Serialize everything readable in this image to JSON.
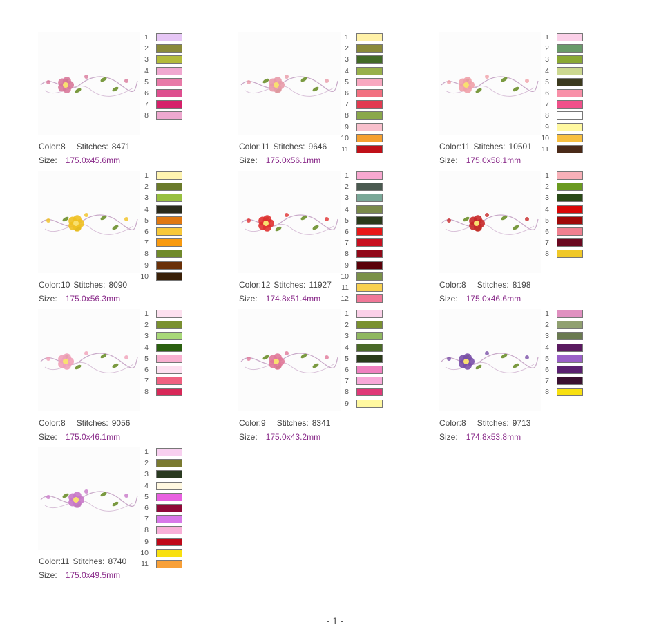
{
  "designs": [
    {
      "color_label": "Color:",
      "color_count": "8",
      "stitches_label": "Stitches:",
      "stitches": "8471",
      "size_label": "Size:",
      "size": "175.0x45.6mm",
      "flower": "#d8789a",
      "palette": [
        "#e6c6f5",
        "#8a8a3a",
        "#b3bb3a",
        "#f0a8d0",
        "#e87aa8",
        "#de4f8f",
        "#d6206a",
        "#eea8cf"
      ]
    },
    {
      "color_label": "Color:",
      "color_count": "11",
      "stitches_label": "Stitches:",
      "stitches": "9646",
      "size_label": "Size:",
      "size": "175.0x56.1mm",
      "flower": "#e89aa8",
      "palette": [
        "#fff1a8",
        "#8a8a3a",
        "#426a26",
        "#98b04a",
        "#f8a8c0",
        "#f27080",
        "#e23a50",
        "#8aa84a",
        "#f8c0cc",
        "#f6a030",
        "#c01018"
      ]
    },
    {
      "color_label": "Color:",
      "color_count": "11",
      "stitches_label": "Stitches:",
      "stitches": "10501",
      "size_label": "Size:",
      "size": "175.0x58.1mm",
      "flower": "#f0a0a8",
      "palette": [
        "#fbd0e8",
        "#6a9a6a",
        "#8aa834",
        "#ccd890",
        "#3c3a1e",
        "#f890a8",
        "#f0508a",
        "#ffffff",
        "#fff8a0",
        "#f8c040",
        "#4a2a18"
      ]
    },
    {
      "color_label": "Color:",
      "color_count": "10",
      "stitches_label": "Stitches:",
      "stitches": "8090",
      "size_label": "Size:",
      "size": "175.0x56.3mm",
      "flower": "#f0c020",
      "palette": [
        "#fff4b0",
        "#6a7a2a",
        "#98c040",
        "#2a2a1a",
        "#e07810",
        "#f8c838",
        "#f89a10",
        "#708a2a",
        "#6a3008",
        "#3a2008"
      ]
    },
    {
      "color_label": "Color:",
      "color_count": "12",
      "stitches_label": "Stitches:",
      "stitches": "11927",
      "size_label": "Size:",
      "size": "174.8x51.4mm",
      "flower": "#e03030",
      "palette": [
        "#f8a8d0",
        "#4a5a50",
        "#7aa898",
        "#7a8a4a",
        "#2a3a1a",
        "#e81818",
        "#c81020",
        "#900818",
        "#5a0008",
        "#7a9048",
        "#f8d050",
        "#f07898"
      ]
    },
    {
      "color_label": "Color:",
      "color_count": "8",
      "stitches_label": "Stitches:",
      "stitches": "8198",
      "size_label": "Size:",
      "size": "175.0x46.6mm",
      "flower": "#c82828",
      "palette": [
        "#f8b0b8",
        "#6a9a20",
        "#2a4a18",
        "#d80808",
        "#a00808",
        "#f08090",
        "#6a0820",
        "#f0c828"
      ]
    },
    {
      "color_label": "Color:",
      "color_count": "8",
      "stitches_label": "Stitches:",
      "stitches": "9056",
      "size_label": "Size:",
      "size": "175.0x46.1mm",
      "flower": "#f0a0b8",
      "palette": [
        "#fde0ef",
        "#7a9030",
        "#a8d878",
        "#2a6010",
        "#f8b0d0",
        "#fde0f0",
        "#f06080",
        "#d82858"
      ]
    },
    {
      "color_label": "Color:",
      "color_count": "9",
      "stitches_label": "Stitches:",
      "stitches": "8341",
      "size_label": "Size:",
      "size": "175.0x43.2mm",
      "flower": "#e07898",
      "palette": [
        "#fbd0e8",
        "#7a9030",
        "#90b860",
        "#4a6a28",
        "#2a3a1a",
        "#f080c0",
        "#f8a8d8",
        "#e03878",
        "#fff8a0"
      ]
    },
    {
      "color_label": "Color:",
      "color_count": "8",
      "stitches_label": "Stitches:",
      "stitches": "9713",
      "size_label": "Size:",
      "size": "174.8x53.8mm",
      "flower": "#7a50a8",
      "palette": [
        "#e090c0",
        "#90a070",
        "#6a7a50",
        "#5a1a60",
        "#9a60c8",
        "#5a2070",
        "#3a1030",
        "#f8e010"
      ]
    },
    {
      "color_label": "Color:",
      "color_count": "11",
      "stitches_label": "Stitches:",
      "stitches": "8740",
      "size_label": "Size:",
      "size": "175.0x49.5mm",
      "flower": "#c878c8",
      "palette": [
        "#f8d0f0",
        "#7a7a30",
        "#2a3a20",
        "#fff8e0",
        "#e860e0",
        "#900838",
        "#d878e8",
        "#f8b0d8",
        "#c00818",
        "#f8e010",
        "#f8a038"
      ]
    }
  ],
  "footer": "- 1 -"
}
